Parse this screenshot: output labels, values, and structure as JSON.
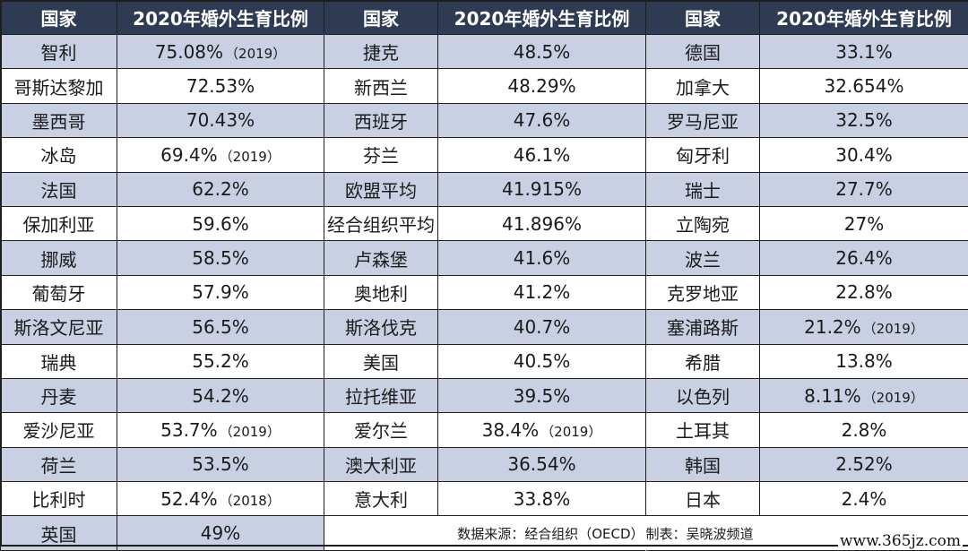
{
  "headers": {
    "country": "国家",
    "ratio": "2020年婚外生育比例"
  },
  "columns": [
    [
      {
        "country": "智利",
        "value": "75.08%",
        "note": "（2019）"
      },
      {
        "country": "哥斯达黎加",
        "value": "72.53%",
        "note": ""
      },
      {
        "country": "墨西哥",
        "value": "70.43%",
        "note": ""
      },
      {
        "country": "冰岛",
        "value": "69.4%",
        "note": "（2019）"
      },
      {
        "country": "法国",
        "value": "62.2%",
        "note": ""
      },
      {
        "country": "保加利亚",
        "value": "59.6%",
        "note": ""
      },
      {
        "country": "挪威",
        "value": "58.5%",
        "note": ""
      },
      {
        "country": "葡萄牙",
        "value": "57.9%",
        "note": ""
      },
      {
        "country": "斯洛文尼亚",
        "value": "56.5%",
        "note": ""
      },
      {
        "country": "瑞典",
        "value": "55.2%",
        "note": ""
      },
      {
        "country": "丹麦",
        "value": "54.2%",
        "note": ""
      },
      {
        "country": "爱沙尼亚",
        "value": "53.7%",
        "note": "（2019）"
      },
      {
        "country": "荷兰",
        "value": "53.5%",
        "note": ""
      },
      {
        "country": "比利时",
        "value": "52.4%",
        "note": "（2018）"
      },
      {
        "country": "英国",
        "value": "49%",
        "note": ""
      }
    ],
    [
      {
        "country": "捷克",
        "value": "48.5%",
        "note": ""
      },
      {
        "country": "新西兰",
        "value": "48.29%",
        "note": ""
      },
      {
        "country": "西班牙",
        "value": "47.6%",
        "note": ""
      },
      {
        "country": "芬兰",
        "value": "46.1%",
        "note": ""
      },
      {
        "country": "欧盟平均",
        "value": "41.915%",
        "note": ""
      },
      {
        "country": "经合组织平均",
        "value": "41.896%",
        "note": ""
      },
      {
        "country": "卢森堡",
        "value": "41.6%",
        "note": ""
      },
      {
        "country": "奥地利",
        "value": "41.2%",
        "note": ""
      },
      {
        "country": "斯洛伐克",
        "value": "40.7%",
        "note": ""
      },
      {
        "country": "美国",
        "value": "40.5%",
        "note": ""
      },
      {
        "country": "拉托维亚",
        "value": "39.5%",
        "note": ""
      },
      {
        "country": "爱尔兰",
        "value": "38.4%",
        "note": "（2019）"
      },
      {
        "country": "澳大利亚",
        "value": "36.54%",
        "note": ""
      },
      {
        "country": "意大利",
        "value": "33.8%",
        "note": ""
      }
    ],
    [
      {
        "country": "德国",
        "value": "33.1%",
        "note": ""
      },
      {
        "country": "加拿大",
        "value": "32.654%",
        "note": ""
      },
      {
        "country": "罗马尼亚",
        "value": "32.5%",
        "note": ""
      },
      {
        "country": "匈牙利",
        "value": "30.4%",
        "note": ""
      },
      {
        "country": "瑞士",
        "value": "27.7%",
        "note": ""
      },
      {
        "country": "立陶宛",
        "value": "27%",
        "note": ""
      },
      {
        "country": "波兰",
        "value": "26.4%",
        "note": ""
      },
      {
        "country": "克罗地亚",
        "value": "22.8%",
        "note": ""
      },
      {
        "country": "塞浦路斯",
        "value": "21.2%",
        "note": "（2019）"
      },
      {
        "country": "希腊",
        "value": "13.8%",
        "note": ""
      },
      {
        "country": "以色列",
        "value": "8.11%",
        "note": "（2019）"
      },
      {
        "country": "土耳其",
        "value": "2.8%",
        "note": ""
      },
      {
        "country": "韩国",
        "value": "2.52%",
        "note": ""
      },
      {
        "country": "日本",
        "value": "2.4%",
        "note": ""
      }
    ]
  ],
  "source": "数据来源：经合组织（OECD） 制表：吴晓波频道",
  "watermark": "www.365jz.com",
  "colors": {
    "header_bg": "#2e3b52",
    "stripe_bg": "#c9d0e3",
    "plain_bg": "#ffffff",
    "border": "#1e1e1e"
  }
}
